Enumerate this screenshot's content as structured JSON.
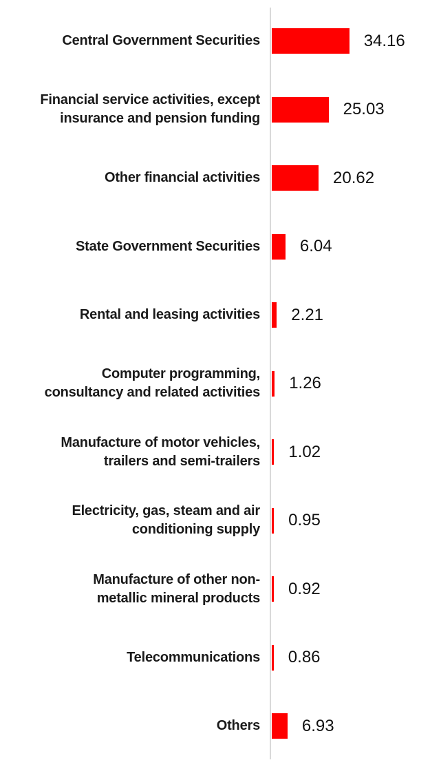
{
  "chart_data": {
    "type": "bar",
    "orientation": "horizontal",
    "title": "",
    "xlabel": "",
    "ylabel": "",
    "xlim": [
      0,
      34.16
    ],
    "grid": false,
    "legend": "none",
    "bar_color": "#FF0000",
    "axis_line_color": "#D9D9D9",
    "text_color": "#1A1A1A",
    "categories": [
      "Central Government Securities",
      "Financial service activities, except insurance and pension funding",
      "Other financial activities",
      "State Government Securities",
      "Rental and leasing activities",
      "Computer programming, consultancy and related activities",
      "Manufacture of motor vehicles, trailers and semi-trailers",
      "Electricity, gas, steam and air conditioning supply",
      "Manufacture of other non-metallic mineral products",
      "Telecommunications",
      "Others"
    ],
    "values": [
      34.16,
      25.03,
      20.62,
      6.04,
      2.21,
      1.26,
      1.02,
      0.95,
      0.92,
      0.86,
      6.93
    ],
    "rows": [
      {
        "label_lines": [
          "Central Government Securities"
        ],
        "value": 34.16,
        "value_label": "34.16"
      },
      {
        "label_lines": [
          "Financial service activities, except",
          "insurance and pension funding"
        ],
        "value": 25.03,
        "value_label": "25.03"
      },
      {
        "label_lines": [
          "Other financial activities"
        ],
        "value": 20.62,
        "value_label": "20.62"
      },
      {
        "label_lines": [
          "State Government Securities"
        ],
        "value": 6.04,
        "value_label": "6.04"
      },
      {
        "label_lines": [
          "Rental and leasing activities"
        ],
        "value": 2.21,
        "value_label": "2.21"
      },
      {
        "label_lines": [
          "Computer programming,",
          "consultancy and related activities"
        ],
        "value": 1.26,
        "value_label": "1.26"
      },
      {
        "label_lines": [
          "Manufacture of motor vehicles,",
          "trailers and semi-trailers"
        ],
        "value": 1.02,
        "value_label": "1.02"
      },
      {
        "label_lines": [
          "Electricity, gas, steam and air",
          "conditioning supply"
        ],
        "value": 0.95,
        "value_label": "0.95"
      },
      {
        "label_lines": [
          "Manufacture of other non-",
          "metallic mineral products"
        ],
        "value": 0.92,
        "value_label": "0.92"
      },
      {
        "label_lines": [
          "Telecommunications"
        ],
        "value": 0.86,
        "value_label": "0.86"
      },
      {
        "label_lines": [
          "Others"
        ],
        "value": 6.93,
        "value_label": "6.93"
      }
    ]
  }
}
